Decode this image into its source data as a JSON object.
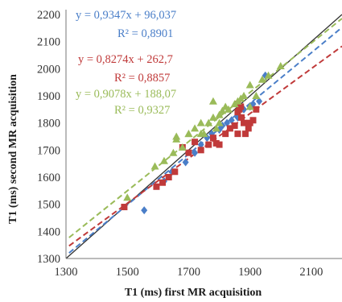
{
  "chart_data": {
    "type": "scatter",
    "xlabel": "T1 (ms) first MR acquisition",
    "ylabel": "T1 (ms) second MR acquisition",
    "xlim": [
      1300,
      2200
    ],
    "ylim": [
      1300,
      2200
    ],
    "xticks": [
      "1300",
      "1500",
      "1700",
      "1900",
      "2100"
    ],
    "yticks": [
      "1300",
      "1400",
      "1500",
      "1600",
      "1700",
      "1800",
      "1900",
      "2000",
      "2100",
      "2200"
    ],
    "grid": false,
    "identity_line": {
      "color": "#333333",
      "from": 1300,
      "to": 2200
    },
    "series": [
      {
        "color": "#4a7ec8",
        "marker": "diamond",
        "fit": {
          "slope": 0.9347,
          "intercept": 96.037,
          "x_range": [
            1310,
            2200
          ]
        },
        "equation": "y = 0,9347x + 96,037",
        "r2": "R² = 0,8901",
        "points": [
          [
            1555,
            1478
          ],
          [
            1620,
            1585
          ],
          [
            1645,
            1620
          ],
          [
            1690,
            1655
          ],
          [
            1720,
            1690
          ],
          [
            1740,
            1720
          ],
          [
            1760,
            1745
          ],
          [
            1775,
            1760
          ],
          [
            1800,
            1775
          ],
          [
            1810,
            1790
          ],
          [
            1825,
            1800
          ],
          [
            1840,
            1810
          ],
          [
            1860,
            1820
          ],
          [
            1880,
            1850
          ],
          [
            1900,
            1860
          ],
          [
            1910,
            1870
          ],
          [
            1930,
            1880
          ],
          [
            1950,
            1975
          ]
        ]
      },
      {
        "color": "#c03a3a",
        "marker": "square",
        "fit": {
          "slope": 0.8274,
          "intercept": 262.7,
          "x_range": [
            1310,
            2200
          ]
        },
        "equation": "y = 0,8274x + 262,7",
        "r2": "R² = 0,8857",
        "points": [
          [
            1490,
            1490
          ],
          [
            1595,
            1565
          ],
          [
            1615,
            1580
          ],
          [
            1635,
            1600
          ],
          [
            1655,
            1620
          ],
          [
            1680,
            1710
          ],
          [
            1700,
            1690
          ],
          [
            1720,
            1730
          ],
          [
            1740,
            1700
          ],
          [
            1765,
            1720
          ],
          [
            1780,
            1745
          ],
          [
            1790,
            1725
          ],
          [
            1800,
            1720
          ],
          [
            1820,
            1760
          ],
          [
            1835,
            1780
          ],
          [
            1850,
            1790
          ],
          [
            1860,
            1840
          ],
          [
            1865,
            1850
          ],
          [
            1870,
            1860
          ],
          [
            1872,
            1820
          ],
          [
            1880,
            1800
          ],
          [
            1885,
            1760
          ],
          [
            1895,
            1780
          ],
          [
            1900,
            1800
          ],
          [
            1910,
            1810
          ],
          [
            1920,
            1850
          ],
          [
            1860,
            1870
          ],
          [
            1860,
            1760
          ]
        ]
      },
      {
        "color": "#9abb59",
        "marker": "triangle",
        "fit": {
          "slope": 0.9078,
          "intercept": 188.07,
          "x_range": [
            1310,
            2200
          ]
        },
        "equation": "y = 0,9078x + 188,07",
        "r2": "R² = 0,9327",
        "points": [
          [
            1500,
            1525
          ],
          [
            1590,
            1640
          ],
          [
            1620,
            1660
          ],
          [
            1650,
            1690
          ],
          [
            1680,
            1710
          ],
          [
            1700,
            1760
          ],
          [
            1720,
            1780
          ],
          [
            1740,
            1800
          ],
          [
            1750,
            1760
          ],
          [
            1765,
            1800
          ],
          [
            1780,
            1820
          ],
          [
            1790,
            1780
          ],
          [
            1800,
            1830
          ],
          [
            1810,
            1845
          ],
          [
            1820,
            1860
          ],
          [
            1830,
            1850
          ],
          [
            1850,
            1870
          ],
          [
            1860,
            1880
          ],
          [
            1870,
            1890
          ],
          [
            1880,
            1900
          ],
          [
            1900,
            1940
          ],
          [
            1920,
            1900
          ],
          [
            1940,
            1960
          ],
          [
            1960,
            1975
          ],
          [
            2000,
            2010
          ],
          [
            1660,
            1750
          ],
          [
            1660,
            1740
          ],
          [
            1700,
            1760
          ],
          [
            1740,
            1760
          ],
          [
            1780,
            1880
          ],
          [
            1800,
            1800
          ],
          [
            1900,
            1860
          ]
        ]
      }
    ]
  }
}
